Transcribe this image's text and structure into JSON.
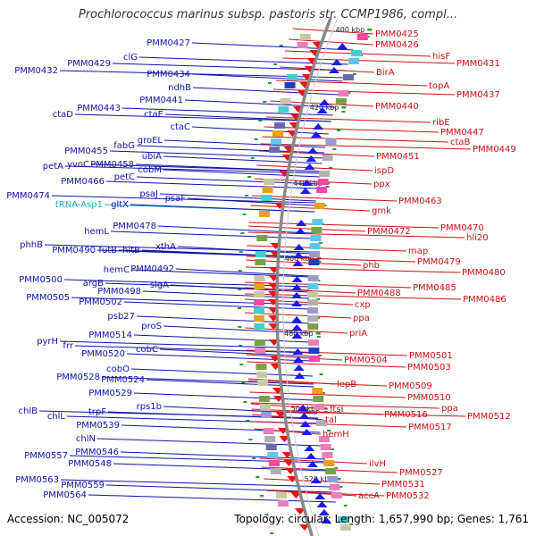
{
  "title": "Prochlorococcus marinus subsp. pastoris str. CCMP1986, compl...",
  "footer": {
    "accession": "Accession: NC_005072",
    "topology": "Topology: circular; Length: 1,657,990 bp; Genes: 1,761"
  },
  "colors": {
    "left_label": "#1111aa",
    "right_label": "#cc1111",
    "trna_label": "#22aacc",
    "left_arrow": "#1a1aee",
    "right_arrow": "#ee1111",
    "backbone": "#888888"
  },
  "kbp_marks": [
    {
      "text": "400 kbp"
    },
    {
      "text": "420 kbp"
    },
    {
      "text": "440 kbp"
    },
    {
      "text": "460 kbp"
    },
    {
      "text": "480 kbp"
    },
    {
      "text": "500 kbp"
    },
    {
      "text": "520 kbp"
    }
  ],
  "left_labels": [
    {
      "text": "PMM0427"
    },
    {
      "text": "clG"
    },
    {
      "text": "PMM0429"
    },
    {
      "text": "PMM0432"
    },
    {
      "text": "PMM0434"
    },
    {
      "text": "ndhB"
    },
    {
      "text": "PMM0441"
    },
    {
      "text": "PMM0443"
    },
    {
      "text": "ctaD"
    },
    {
      "text": "ctaE"
    },
    {
      "text": "ctaC"
    },
    {
      "text": "groEL"
    },
    {
      "text": "fabG"
    },
    {
      "text": "PMM0455"
    },
    {
      "text": "ubiA"
    },
    {
      "text": "PMM0458"
    },
    {
      "text": "petA"
    },
    {
      "text": "yvoC"
    },
    {
      "text": "cobM"
    },
    {
      "text": "petC"
    },
    {
      "text": "PMM0466"
    },
    {
      "text": "psaJ"
    },
    {
      "text": "psaF"
    },
    {
      "text": "PMM0474"
    },
    {
      "text": "tRNA-Asp1"
    },
    {
      "text": "gltX"
    },
    {
      "text": "PMM0478"
    },
    {
      "text": "hemL"
    },
    {
      "text": "xthA"
    },
    {
      "text": "phhB"
    },
    {
      "text": "PMM0490"
    },
    {
      "text": "futB"
    },
    {
      "text": "hitB"
    },
    {
      "text": "hemC"
    },
    {
      "text": "PMM0492"
    },
    {
      "text": "PMM0500"
    },
    {
      "text": "argB"
    },
    {
      "text": "sigA"
    },
    {
      "text": "PMM0498"
    },
    {
      "text": "PMM0505"
    },
    {
      "text": "PMM0502"
    },
    {
      "text": "psb27"
    },
    {
      "text": "proS"
    },
    {
      "text": "PMM0514"
    },
    {
      "text": "pyrH"
    },
    {
      "text": "frr"
    },
    {
      "text": "cobC"
    },
    {
      "text": "PMM0520"
    },
    {
      "text": "cobO"
    },
    {
      "text": "PMM0528"
    },
    {
      "text": "PMM0524"
    },
    {
      "text": "PMM0529"
    },
    {
      "text": "rps1b"
    },
    {
      "text": "trpF"
    },
    {
      "text": "chlB"
    },
    {
      "text": "chlL"
    },
    {
      "text": "PMM0539"
    },
    {
      "text": "chlN"
    },
    {
      "text": "PMM0546"
    },
    {
      "text": "PMM0557"
    },
    {
      "text": "PMM0548"
    },
    {
      "text": "PMM0563"
    },
    {
      "text": "PMM0559"
    },
    {
      "text": "PMM0564"
    }
  ],
  "right_labels": [
    {
      "text": "PMM0425"
    },
    {
      "text": "PMM0426"
    },
    {
      "text": "hisF"
    },
    {
      "text": "PMM0431"
    },
    {
      "text": "BirA"
    },
    {
      "text": "topA"
    },
    {
      "text": "PMM0437"
    },
    {
      "text": "PMM0440"
    },
    {
      "text": "ribE"
    },
    {
      "text": "PMM0447"
    },
    {
      "text": "ctaB"
    },
    {
      "text": "PMM0449"
    },
    {
      "text": "PMM0451"
    },
    {
      "text": "ispD"
    },
    {
      "text": "ppx"
    },
    {
      "text": "PMM0463"
    },
    {
      "text": "gmk"
    },
    {
      "text": "PMM0470"
    },
    {
      "text": "PMM0472"
    },
    {
      "text": "hli20"
    },
    {
      "text": "map"
    },
    {
      "text": "PMM0479"
    },
    {
      "text": "phb"
    },
    {
      "text": "PMM0480"
    },
    {
      "text": "PMM0485"
    },
    {
      "text": "PMM0488"
    },
    {
      "text": "PMM0486"
    },
    {
      "text": "cxp"
    },
    {
      "text": "ppa"
    },
    {
      "text": "priA"
    },
    {
      "text": "PMM0501"
    },
    {
      "text": "PMM0504"
    },
    {
      "text": "PMM0503"
    },
    {
      "text": "lepB"
    },
    {
      "text": "PMM0509"
    },
    {
      "text": "PMM0510"
    },
    {
      "text": "ppa"
    },
    {
      "text": "ftsI"
    },
    {
      "text": "PMM0516"
    },
    {
      "text": "PMM0512"
    },
    {
      "text": "tal"
    },
    {
      "text": "PMM0517"
    },
    {
      "text": "hemH"
    },
    {
      "text": "ilvH"
    },
    {
      "text": "PMM0527"
    },
    {
      "text": "PMM0531"
    },
    {
      "text": "accA"
    },
    {
      "text": "PMM0532"
    }
  ]
}
